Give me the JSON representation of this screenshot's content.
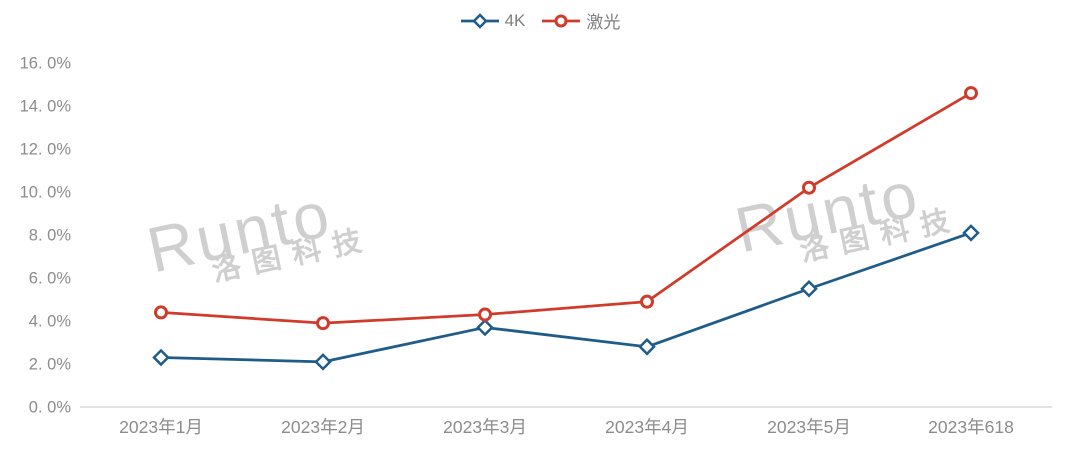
{
  "colors": {
    "series_4k": "#1F5C8A",
    "series_laser": "#D13B2B",
    "axis_line": "#D9D9D9",
    "tick_label": "#8C8C8C",
    "legend_label": "#7F7F7F",
    "watermark": "#CFCFCF",
    "marker_fill": "#FFFFFF"
  },
  "watermark": {
    "line1": "Runto",
    "line2": "洛图科技"
  },
  "chart_data": {
    "type": "line",
    "title": "",
    "xlabel": "",
    "ylabel": "",
    "categories": [
      "2023年1月",
      "2023年2月",
      "2023年3月",
      "2023年4月",
      "2023年5月",
      "2023年618"
    ],
    "series": [
      {
        "name": "4K",
        "color": "#1F5C8A",
        "marker": "diamond",
        "values": [
          2.3,
          2.1,
          3.7,
          2.8,
          5.5,
          8.1
        ]
      },
      {
        "name": "激光",
        "color": "#D13B2B",
        "marker": "circle",
        "values": [
          4.4,
          3.9,
          4.3,
          4.9,
          10.2,
          14.6
        ]
      }
    ],
    "ylim": [
      0,
      16
    ],
    "yticks": {
      "values": [
        16,
        14,
        12,
        10,
        8,
        6,
        4,
        2,
        0
      ],
      "labels": [
        "16. 0%",
        "14. 0%",
        "12. 0%",
        "10. 0%",
        "8. 0%",
        "6. 0%",
        "4. 0%",
        "2. 0%",
        "0. 0%"
      ]
    },
    "grid": false,
    "legend_position": "top-center"
  }
}
